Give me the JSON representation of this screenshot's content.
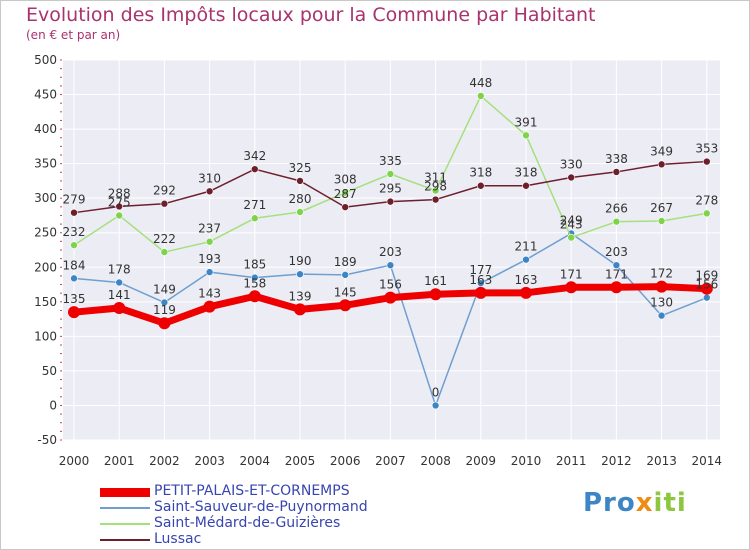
{
  "title": "Evolution des Impôts locaux pour la Commune par Habitant",
  "subtitle": "(en € et par an)",
  "logo": {
    "p1": "Pro",
    "p2": "x",
    "p3": "iti"
  },
  "chart_data": {
    "type": "line",
    "x": [
      "2000",
      "2001",
      "2002",
      "2003",
      "2004",
      "2005",
      "2006",
      "2007",
      "2008",
      "2009",
      "2010",
      "2011",
      "2012",
      "2013",
      "2014"
    ],
    "ylim": [
      -50,
      500
    ],
    "yticks": [
      -50,
      0,
      50,
      100,
      150,
      200,
      250,
      300,
      350,
      400,
      450,
      500
    ],
    "grid": true,
    "legend_position": "bottom-left",
    "series": [
      {
        "name": "PETIT-PALAIS-ET-CORNEMPS",
        "color": "#ee0000",
        "point_color": "#ee0000",
        "width": 7,
        "values": [
          135,
          141,
          119,
          143,
          158,
          139,
          145,
          156,
          161,
          163,
          163,
          171,
          171,
          172,
          169
        ],
        "labels": [
          "135",
          "141",
          "119",
          "143",
          "158",
          "139",
          "145",
          "156",
          "161",
          "163",
          "163",
          "171",
          "171",
          "172",
          "169"
        ]
      },
      {
        "name": "Saint-Sauveur-de-Puynormand",
        "color": "#6f9fd0",
        "point_color": "#3d86c6",
        "width": 1.5,
        "values": [
          184,
          178,
          149,
          193,
          185,
          190,
          189,
          203,
          0,
          177,
          211,
          249,
          203,
          130,
          156
        ],
        "labels": [
          "184",
          "178",
          "149",
          "193",
          "185",
          "190",
          "189",
          "203",
          "0",
          "177",
          "211",
          "249",
          "203",
          "130",
          "156"
        ]
      },
      {
        "name": "Saint-Médard-de-Guizières",
        "color": "#a6e07d",
        "point_color": "#7fd34b",
        "width": 1.5,
        "values": [
          232,
          275,
          222,
          237,
          271,
          280,
          308,
          335,
          311,
          448,
          391,
          243,
          266,
          267,
          278
        ],
        "labels": [
          "232",
          "275",
          "222",
          "237",
          "271",
          "280",
          "308",
          "335",
          "311",
          "448",
          "391",
          "243",
          "266",
          "267",
          "278"
        ]
      },
      {
        "name": "Lussac",
        "color": "#6e1f2c",
        "point_color": "#6e1f2c",
        "width": 1.5,
        "values": [
          279,
          288,
          292,
          310,
          342,
          325,
          287,
          295,
          298,
          318,
          318,
          330,
          338,
          349,
          353
        ],
        "labels": [
          "279",
          "288",
          "292",
          "310",
          "342",
          "325",
          "287",
          "295",
          "298",
          "318",
          "318",
          "330",
          "338",
          "349",
          "353"
        ]
      }
    ]
  }
}
